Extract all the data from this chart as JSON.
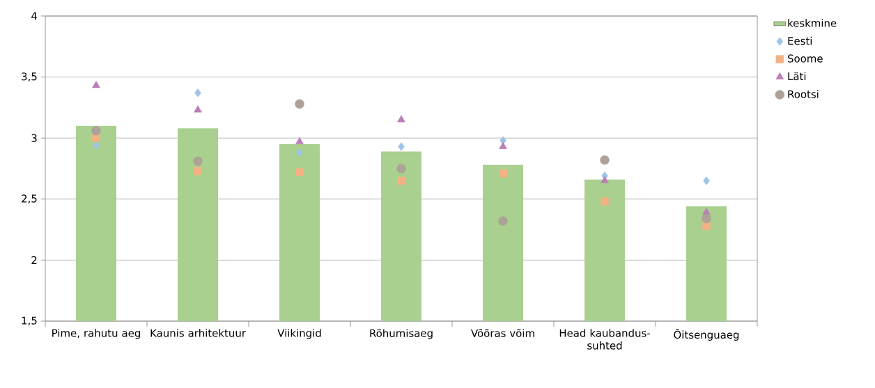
{
  "chart_data": {
    "type": "bar",
    "categories": [
      "Pime, rahutu aeg",
      "Kaunis arhitektuur",
      "Viikingid",
      "Rõhumisaeg",
      "Võõras võim",
      "Head kaubandus-suhted",
      "Õitsenguaeg"
    ],
    "series": [
      {
        "name": "keskmine",
        "type": "bar",
        "color": "#a9d08e",
        "values": [
          3.1,
          3.08,
          2.95,
          2.89,
          2.78,
          2.66,
          2.44
        ]
      },
      {
        "name": "Eesti",
        "type": "scatter",
        "marker": "diamond",
        "color": "#9dc3e6",
        "values": [
          2.94,
          3.37,
          2.88,
          2.93,
          2.98,
          2.69,
          2.65
        ]
      },
      {
        "name": "Soome",
        "type": "scatter",
        "marker": "square",
        "color": "#f4b183",
        "values": [
          3.0,
          2.73,
          2.72,
          2.65,
          2.71,
          2.48,
          2.28
        ]
      },
      {
        "name": "Läti",
        "type": "scatter",
        "marker": "triangle",
        "color": "#b97fb6",
        "values": [
          3.43,
          3.23,
          2.97,
          3.15,
          2.93,
          2.65,
          2.39
        ]
      },
      {
        "name": "Rootsi",
        "type": "scatter",
        "marker": "circle",
        "color": "#aca297",
        "values": [
          3.06,
          2.81,
          3.28,
          2.75,
          2.32,
          2.82,
          2.34
        ]
      }
    ],
    "ylim": [
      1.5,
      4
    ],
    "yticks": [
      {
        "value": 1.5,
        "label": "1,5"
      },
      2,
      {
        "value": 2.5,
        "label": "2,5"
      },
      3,
      {
        "value": 3.5,
        "label": "3,5"
      },
      4
    ],
    "grid": "y",
    "legend": "right"
  }
}
